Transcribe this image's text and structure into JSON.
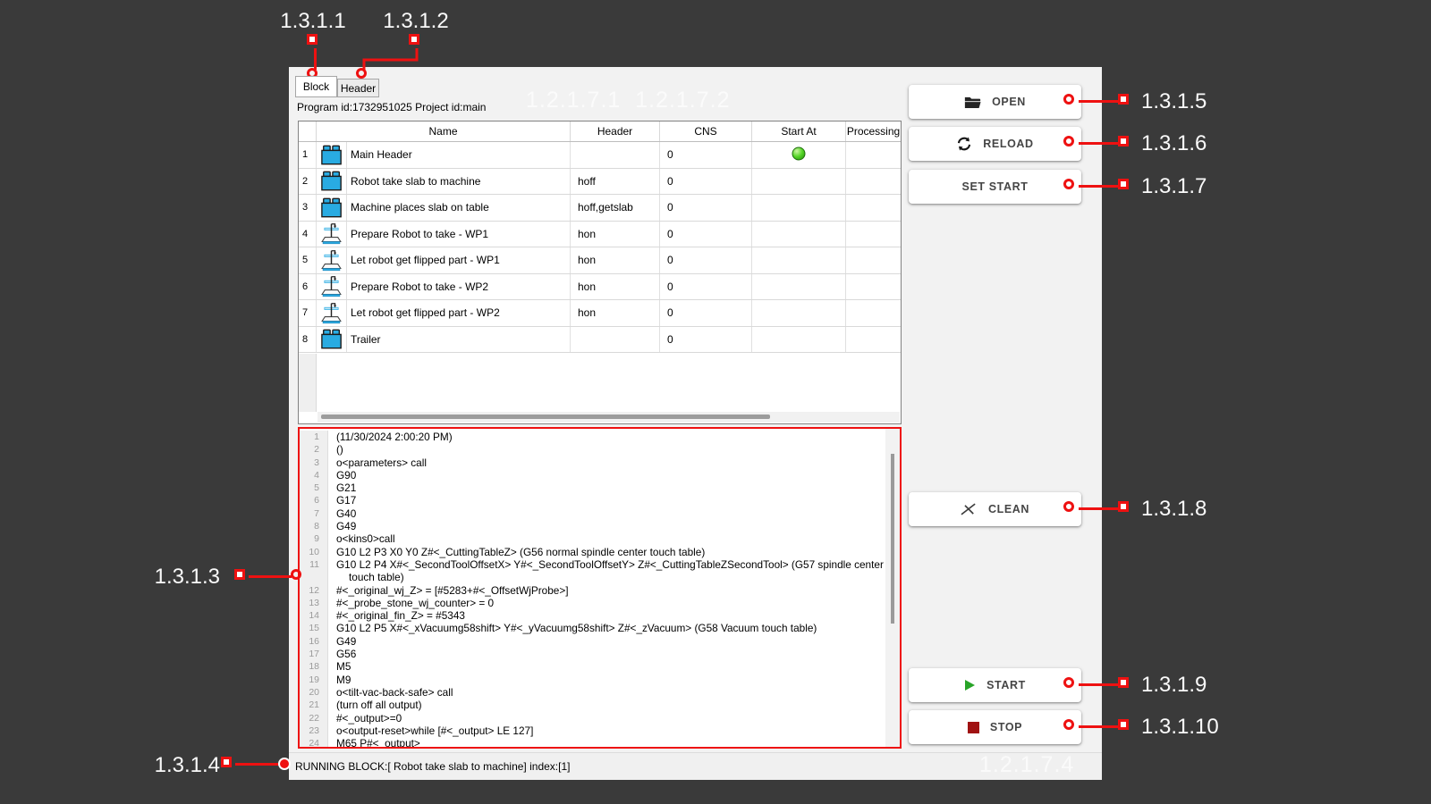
{
  "tabs": [
    {
      "label": "Block",
      "active": true
    },
    {
      "label": "Header",
      "active": false
    }
  ],
  "program_label": "Program id:1732951025 Project id:main",
  "table": {
    "columns": [
      "Name",
      "Header",
      "CNS",
      "Start At",
      "Processing"
    ],
    "rows": [
      {
        "num": "1",
        "icon": "brick-icon",
        "name": "Main Header",
        "header": "",
        "cns": "0",
        "start_at": "green-dot"
      },
      {
        "num": "2",
        "icon": "brick-icon",
        "name": "Robot take slab to machine",
        "header": "hoff",
        "cns": "0",
        "start_at": ""
      },
      {
        "num": "3",
        "icon": "brick-icon",
        "name": "Machine places slab on table",
        "header": "hoff,getslab",
        "cns": "0",
        "start_at": ""
      },
      {
        "num": "4",
        "icon": "flip-table-icon",
        "name": "Prepare Robot to take - WP1",
        "header": "hon",
        "cns": "0",
        "start_at": ""
      },
      {
        "num": "5",
        "icon": "flip-table-icon",
        "name": "Let robot get flipped part - WP1",
        "header": "hon",
        "cns": "0",
        "start_at": ""
      },
      {
        "num": "6",
        "icon": "flip-table-icon",
        "name": "Prepare Robot to take - WP2",
        "header": "hon",
        "cns": "0",
        "start_at": ""
      },
      {
        "num": "7",
        "icon": "flip-table-icon",
        "name": "Let robot get flipped part - WP2",
        "header": "hon",
        "cns": "0",
        "start_at": ""
      },
      {
        "num": "8",
        "icon": "brick-icon",
        "name": "Trailer",
        "header": "",
        "cns": "0",
        "start_at": ""
      }
    ]
  },
  "code": {
    "lines": [
      {
        "n": "1",
        "text": "(11/30/2024 2:00:20 PM)"
      },
      {
        "n": "2",
        "text": "()"
      },
      {
        "n": "3",
        "text": "o<parameters> call"
      },
      {
        "n": "4",
        "text": "G90"
      },
      {
        "n": "5",
        "text": "G21"
      },
      {
        "n": "6",
        "text": "G17"
      },
      {
        "n": "7",
        "text": "G40"
      },
      {
        "n": "8",
        "text": "G49"
      },
      {
        "n": "9",
        "text": "o<kins0>call"
      },
      {
        "n": "10",
        "text": "G10 L2 P3 X0 Y0 Z#<_CuttingTableZ> (G56 normal spindle center touch table)"
      },
      {
        "n": "11",
        "text": "G10 L2 P4 X#<_SecondToolOffsetX> Y#<_SecondToolOffsetY> Z#<_CuttingTableZSecondTool> (G57 spindle center",
        "wrap": true
      },
      {
        "n": "",
        "text": "touch table)",
        "indent": true
      },
      {
        "n": "12",
        "text": "#<_original_wj_Z> = [#5283+#<_OffsetWjProbe>]"
      },
      {
        "n": "13",
        "text": "#<_probe_stone_wj_counter> = 0"
      },
      {
        "n": "14",
        "text": "#<_original_fin_Z> = #5343"
      },
      {
        "n": "15",
        "text": "G10 L2 P5 X#<_xVacuumg58shift> Y#<_yVacuumg58shift> Z#<_zVacuum> (G58 Vacuum touch table)"
      },
      {
        "n": "16",
        "text": "G49"
      },
      {
        "n": "17",
        "text": "G56"
      },
      {
        "n": "18",
        "text": "M5"
      },
      {
        "n": "19",
        "text": "M9"
      },
      {
        "n": "20",
        "text": "o<tilt-vac-back-safe> call"
      },
      {
        "n": "21",
        "text": "(turn off all output)"
      },
      {
        "n": "22",
        "text": "#<_output>=0"
      },
      {
        "n": "23",
        "text": "o<output-reset>while [#<_output> LE 127]"
      },
      {
        "n": "24",
        "text": "M65 P#<_output>"
      }
    ]
  },
  "status_bar": {
    "text": "RUNNING BLOCK:[ Robot take slab to machine] index:[1]"
  },
  "buttons": [
    {
      "label": "OPEN",
      "icon": "folder-icon"
    },
    {
      "label": "RELOAD",
      "icon": "reload-icon"
    },
    {
      "label": "SET START",
      "icon": ""
    },
    {
      "label": "CLEAN",
      "icon": "clean-icon"
    },
    {
      "label": "START",
      "icon": "play-icon"
    },
    {
      "label": "STOP",
      "icon": "stop-icon"
    }
  ],
  "annotations": {
    "a1": {
      "label": "1.3.1.1"
    },
    "a2": {
      "label": "1.3.1.2"
    },
    "a3": {
      "label": "1.3.1.3"
    },
    "a4": {
      "label": "1.3.1.4"
    },
    "a5": {
      "label": "1.3.1.5"
    },
    "a6": {
      "label": "1.3.1.6"
    },
    "a7": {
      "label": "1.3.1.7"
    },
    "a8": {
      "label": "1.3.1.8"
    },
    "a9": {
      "label": "1.3.1.9"
    },
    "a10": {
      "label": "1.3.1.10"
    }
  },
  "watermarks": {
    "top": "1.2.1.7.1  1.2.1.7.2",
    "bottom": "1.2.1.7.4"
  },
  "colors": {
    "annotation_red": "#ee1111",
    "icon_blue": "#29abe2",
    "start_dot_green": "#3fbf17",
    "play_green": "#28a428",
    "stop_red": "#a01212",
    "background_dark": "#3a3a3a",
    "window_bg": "#f2f2f2"
  }
}
